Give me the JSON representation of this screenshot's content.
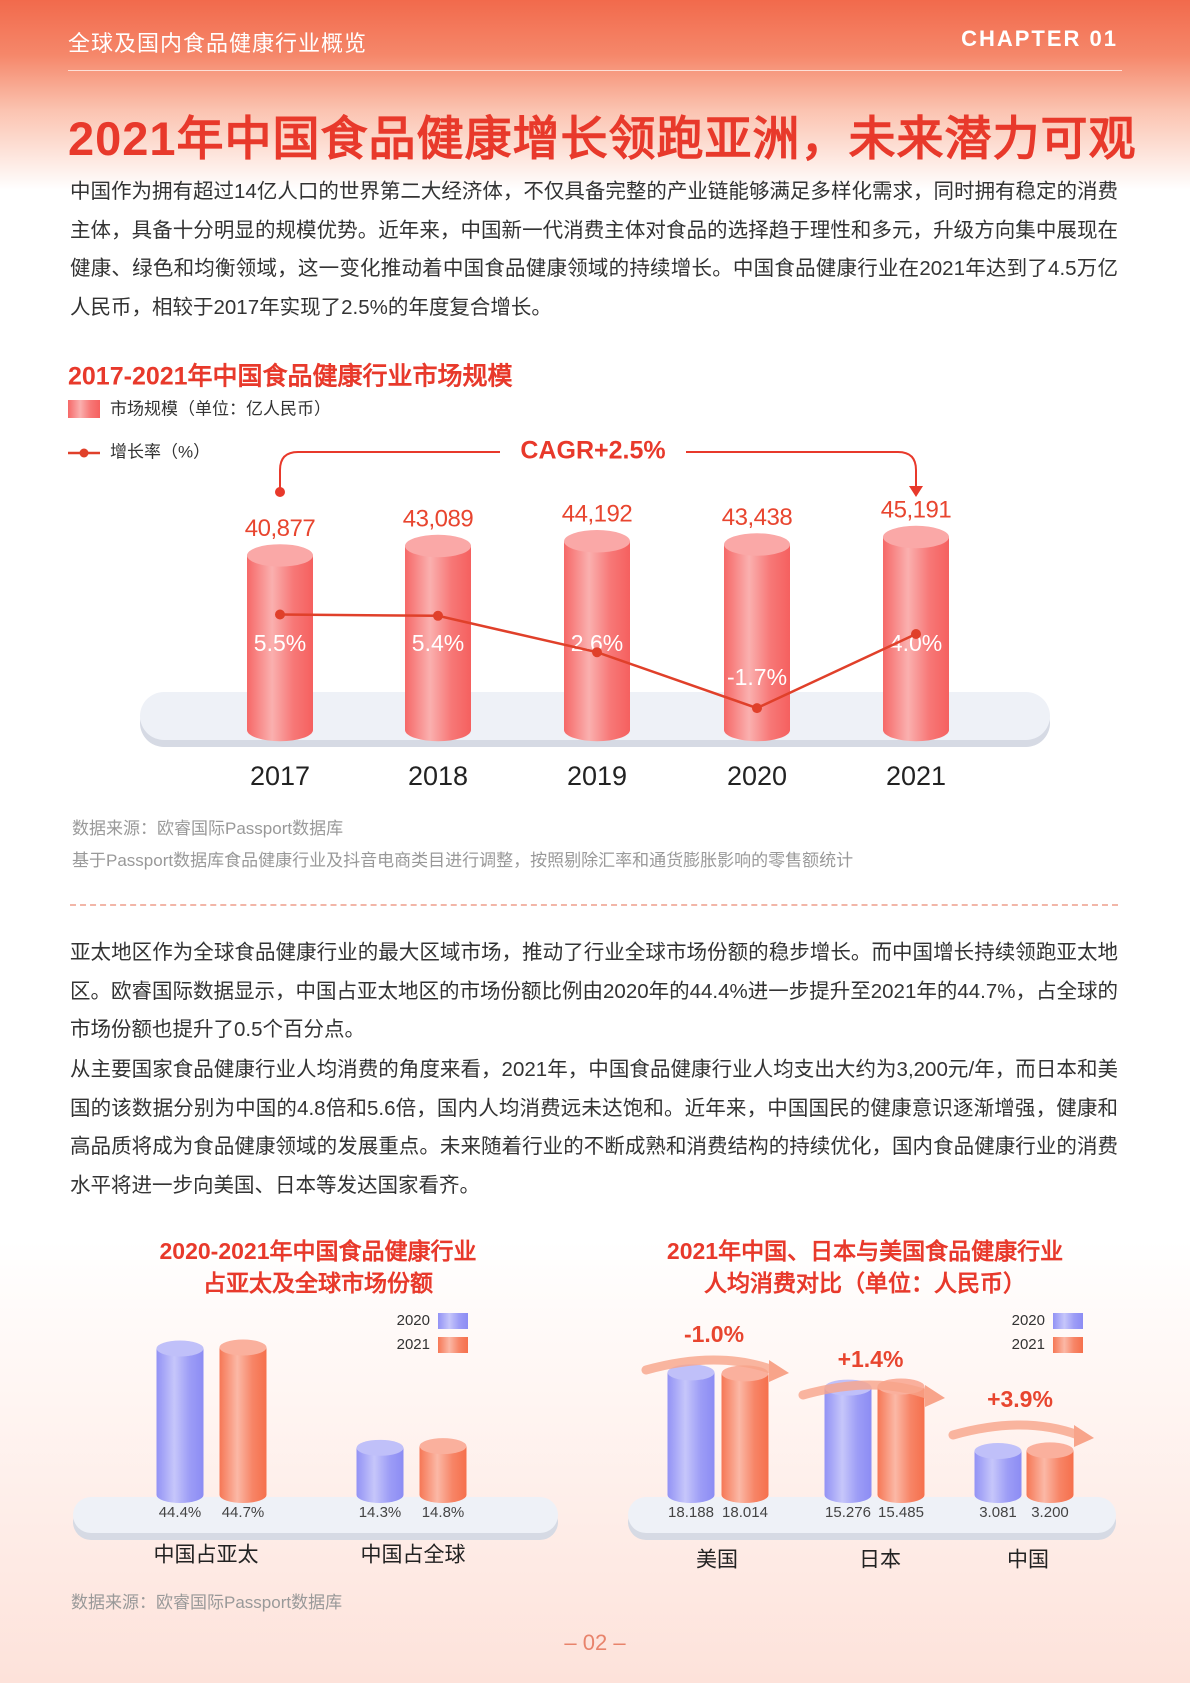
{
  "header": {
    "section": "全球及国内食品健康行业概览",
    "chapter": "CHAPTER 01"
  },
  "title": "2021年中国食品健康增长领跑亚洲，未来潜力可观",
  "intro": "中国作为拥有超过14亿人口的世界第二大经济体，不仅具备完整的产业链能够满足多样化需求，同时拥有稳定的消费主体，具备十分明显的规模优势。近年来，中国新一代消费主体对食品的选择趋于理性和多元，升级方向集中展现在健康、绿色和均衡领域，这一变化推动着中国食品健康领域的持续增长。中国食品健康行业在2021年达到了4.5万亿人民币，相较于2017年实现了2.5%的年度复合增长。",
  "chart_data": [
    {
      "type": "combo",
      "title": "2017-2021年中国食品健康行业市场规模",
      "annotation": "CAGR+2.5%",
      "categories": [
        "2017",
        "2018",
        "2019",
        "2020",
        "2021"
      ],
      "series": [
        {
          "name": "市场规模（单位：亿人民币）",
          "color": "#f5605f",
          "kind": "bar",
          "values": [
            40877,
            43089,
            44192,
            43438,
            45191
          ],
          "value_labels": [
            "40,877",
            "43,089",
            "44,192",
            "43,438",
            "45,191"
          ]
        },
        {
          "name": "增长率（%）",
          "color": "#e0402a",
          "kind": "line",
          "values": [
            5.5,
            5.4,
            2.6,
            -1.7,
            4.0
          ],
          "value_labels": [
            "5.5%",
            "5.4%",
            "2.6%",
            "-1.7%",
            "4.0%"
          ]
        }
      ],
      "source": "数据来源：欧睿国际Passport数据库",
      "note": "基于Passport数据库食品健康行业及抖音电商类目进行调整，按照剔除汇率和通货膨胀影响的零售额统计"
    },
    {
      "type": "bar",
      "title": [
        "2020-2021年中国食品健康行业",
        "占亚太及全球市场份额"
      ],
      "categories": [
        "中国占亚太",
        "中国占全球"
      ],
      "series": [
        {
          "name": "2020",
          "color": "#8c8cf4",
          "values": [
            44.4,
            14.3
          ],
          "value_labels": [
            "44.4%",
            "14.3%"
          ]
        },
        {
          "name": "2021",
          "color": "#f6704c",
          "values": [
            44.7,
            14.8
          ],
          "value_labels": [
            "44.7%",
            "14.8%"
          ]
        }
      ]
    },
    {
      "type": "bar",
      "title": [
        "2021年中国、日本与美国食品健康行业",
        "人均消费对比（单位：人民币）"
      ],
      "categories": [
        "美国",
        "日本",
        "中国"
      ],
      "annotations": [
        "-1.0%",
        "+1.4%",
        "+3.9%"
      ],
      "series": [
        {
          "name": "2020",
          "color": "#8c8cf4",
          "values": [
            18.188,
            15.276,
            3.081
          ],
          "value_labels": [
            "18.188",
            "15.276",
            "3.081"
          ]
        },
        {
          "name": "2021",
          "color": "#f6704c",
          "values": [
            18.014,
            15.485,
            3.2
          ],
          "value_labels": [
            "18.014",
            "15.485",
            "3.200"
          ]
        }
      ]
    }
  ],
  "body": [
    "亚太地区作为全球食品健康行业的最大区域市场，推动了行业全球市场份额的稳步增长。而中国增长持续领跑亚太地区。欧睿国际数据显示，中国占亚太地区的市场份额比例由2020年的44.4%进一步提升至2021年的44.7%，占全球的市场份额也提升了0.5个百分点。",
    "从主要国家食品健康行业人均消费的角度来看，2021年，中国食品健康行业人均支出大约为3,200元/年，而日本和美国的该数据分别为中国的4.8倍和5.6倍，国内人均消费远未达饱和。近年来，中国国民的健康意识逐渐增强，健康和高品质将成为食品健康领域的发展重点。未来随着行业的不断成熟和消费结构的持续优化，国内食品健康行业的消费水平将进一步向美国、日本等发达国家看齐。"
  ],
  "footer_source": "数据来源：欧睿国际Passport数据库",
  "page_number": "– 02 –"
}
